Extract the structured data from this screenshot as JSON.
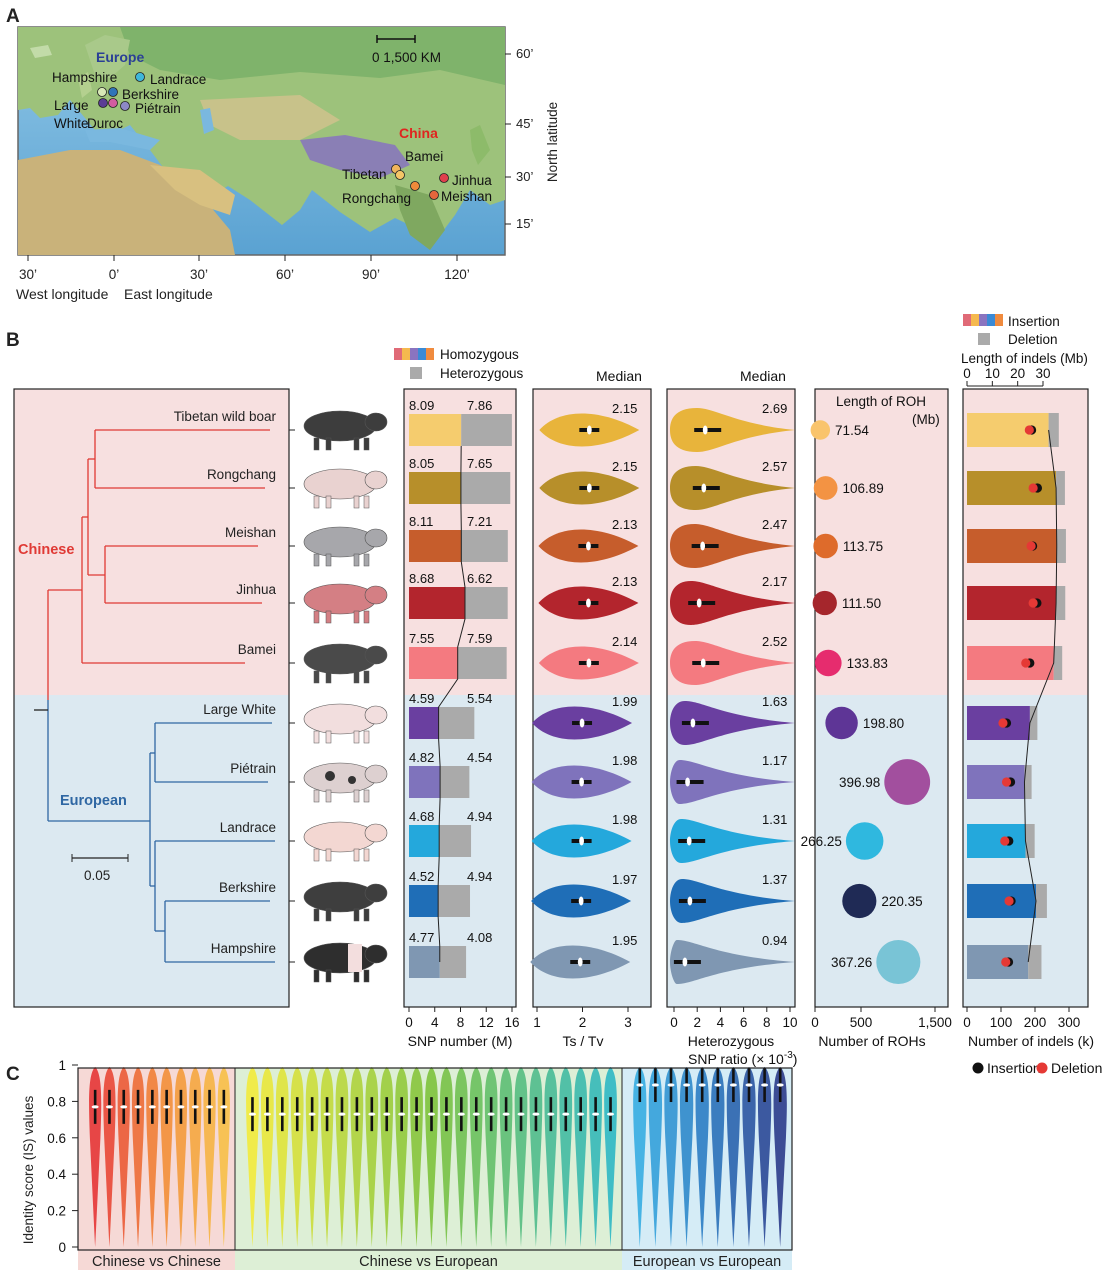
{
  "panels": {
    "a": "A",
    "b": "B",
    "c": "C"
  },
  "colors": {
    "chinese_bg": "#f7e0e0",
    "european_bg": "#dce9f1",
    "chinese_tree": "#e03a35",
    "european_tree": "#2f67a3",
    "heterozygous": "#aaaaaa",
    "insertion_dot": "#111111",
    "deletion_dot": "#e53935"
  },
  "map": {
    "europe_label": "Europe",
    "china_label": "China",
    "scale_label": "0   1,500 KM",
    "y_axis_title": "North latitude",
    "lat_ticks": [
      "60’",
      "45’",
      "30’",
      "15’"
    ],
    "lon_ticks": [
      "30’",
      "0’",
      "30’",
      "60’",
      "90’",
      "120’"
    ],
    "west_label": "West longitude",
    "east_label": "East longitude",
    "europe_breeds": [
      {
        "name": "Hampshire",
        "color": "#d7e8b6"
      },
      {
        "name": "Landrace",
        "color": "#3fb7d9"
      },
      {
        "name": "Berkshire",
        "color": "#2f74b8"
      },
      {
        "name": "Large",
        "color": "#5b3d95"
      },
      {
        "name": "White",
        "color": ""
      },
      {
        "name": "Piétrain",
        "color": "#8d89c6"
      },
      {
        "name": "Duroc",
        "color": "#d25ca0"
      }
    ],
    "china_breeds": [
      {
        "name": "Bamei",
        "color": "#f0b55c"
      },
      {
        "name": "Tibetan",
        "color": "#f5c667"
      },
      {
        "name": "Jinhua",
        "color": "#e0404c"
      },
      {
        "name": "Rongchang",
        "color": "#f08a3b"
      },
      {
        "name": "Meishan",
        "color": "#e5663c"
      }
    ]
  },
  "tree": {
    "chinese_label": "Chinese",
    "european_label": "European",
    "scale_value": "0.05"
  },
  "breeds": [
    {
      "name": "Tibetan wild boar",
      "color": "#f5cc6e",
      "group": "chinese"
    },
    {
      "name": "Rongchang",
      "color": "#b78f2a",
      "group": "chinese"
    },
    {
      "name": "Meishan",
      "color": "#c65d2c",
      "group": "chinese"
    },
    {
      "name": "Jinhua",
      "color": "#b3252d",
      "group": "chinese"
    },
    {
      "name": "Bamei",
      "color": "#f47a80",
      "group": "chinese"
    },
    {
      "name": "Large White",
      "color": "#6a3fa0",
      "group": "european"
    },
    {
      "name": "Piétrain",
      "color": "#7f73bc",
      "group": "european"
    },
    {
      "name": "Landrace",
      "color": "#24a8dc",
      "group": "european"
    },
    {
      "name": "Berkshire",
      "color": "#1f6eb7",
      "group": "european"
    },
    {
      "name": "Hampshire",
      "color": "#7f97b2",
      "group": "european"
    }
  ],
  "chart_data": [
    {
      "type": "bar",
      "id": "snp",
      "title": "",
      "xlabel": "SNP number (M)",
      "legend": [
        "Homozygous",
        "Heterozygous"
      ],
      "xlim": [
        0,
        16
      ],
      "ticks": [
        "0",
        "4",
        "8",
        "12",
        "16"
      ],
      "categories": [
        "Tibetan wild boar",
        "Rongchang",
        "Meishan",
        "Jinhua",
        "Bamei",
        "Large White",
        "Piétrain",
        "Landrace",
        "Berkshire",
        "Hampshire"
      ],
      "series": [
        {
          "name": "Homozygous",
          "values": [
            8.09,
            8.05,
            8.11,
            8.68,
            7.55,
            4.59,
            4.82,
            4.68,
            4.52,
            4.77
          ]
        },
        {
          "name": "Heterozygous",
          "values": [
            7.86,
            7.65,
            7.21,
            6.62,
            7.59,
            5.54,
            4.54,
            4.94,
            4.94,
            4.08
          ]
        }
      ]
    },
    {
      "type": "violin",
      "id": "tstv",
      "header": "Median",
      "xlabel": "Ts / Tv",
      "xlim": [
        1,
        3
      ],
      "ticks": [
        "1",
        "2",
        "3"
      ],
      "categories": [
        "Tibetan wild boar",
        "Rongchang",
        "Meishan",
        "Jinhua",
        "Bamei",
        "Large White",
        "Piétrain",
        "Landrace",
        "Berkshire",
        "Hampshire"
      ],
      "median": [
        2.15,
        2.15,
        2.13,
        2.13,
        2.14,
        1.99,
        1.98,
        1.98,
        1.97,
        1.95
      ],
      "labels": [
        "2.15",
        "2.15",
        "2.13",
        "2.13",
        "2.14",
        "1.99",
        "1.98",
        "1.98",
        "1.97",
        "1.95"
      ]
    },
    {
      "type": "violin",
      "id": "hetratio",
      "header": "Median",
      "xlabel": "Heterozygous",
      "xlabel2": "SNP ratio (× 10",
      "xlabel_sup": "-3",
      "xlim": [
        0,
        10
      ],
      "ticks": [
        "0",
        "2",
        "4",
        "6",
        "8",
        "10"
      ],
      "categories": [
        "Tibetan wild boar",
        "Rongchang",
        "Meishan",
        "Jinhua",
        "Bamei",
        "Large White",
        "Piétrain",
        "Landrace",
        "Berkshire",
        "Hampshire"
      ],
      "median": [
        2.69,
        2.57,
        2.47,
        2.17,
        2.52,
        1.63,
        1.17,
        1.31,
        1.37,
        0.94
      ],
      "labels": [
        "2.69",
        "2.57",
        "2.47",
        "2.17",
        "2.52",
        "1.63",
        "1.17",
        "1.31",
        "1.37",
        "0.94"
      ]
    },
    {
      "type": "scatter",
      "id": "roh",
      "legend_title": "Length of ROH",
      "legend_unit": "(Mb)",
      "xlabel": "Number of ROHs",
      "xlim": [
        0,
        1500
      ],
      "ticks": [
        "0",
        "500",
        "1,500"
      ],
      "categories": [
        "Tibetan wild boar",
        "Rongchang",
        "Meishan",
        "Jinhua",
        "Bamei",
        "Large White",
        "Piétrain",
        "Landrace",
        "Berkshire",
        "Hampshire"
      ],
      "number": [
        60,
        120,
        120,
        110,
        150,
        300,
        1040,
        560,
        500,
        940
      ],
      "length_mb": [
        71.54,
        106.89,
        113.75,
        111.5,
        133.83,
        198.8,
        396.98,
        266.25,
        220.35,
        367.26
      ],
      "labels": [
        "71.54",
        "106.89",
        "113.75",
        "111.50",
        "133.83",
        "198.80",
        "396.98",
        "266.25",
        "220.35",
        "367.26"
      ],
      "dot_colors": [
        "#f9c46c",
        "#f39343",
        "#de6b2b",
        "#a5262c",
        "#e62c6e",
        "#5e3596",
        "#a24f9e",
        "#2fb8df",
        "#1f2a55",
        "#79c4d6"
      ]
    },
    {
      "type": "bar",
      "id": "indels",
      "legend": [
        "Insertion",
        "Deletion"
      ],
      "top_label": "Length of indels (Mb)",
      "top_ticks": [
        "0",
        "10",
        "20",
        "30"
      ],
      "top_xlim": [
        0,
        30
      ],
      "xlabel": "Number of indels (k)",
      "xlim": [
        0,
        350
      ],
      "ticks": [
        "0",
        "100",
        "200",
        "300"
      ],
      "dot_legend": [
        "Insertion",
        "Deletion"
      ],
      "categories": [
        "Tibetan wild boar",
        "Rongchang",
        "Meishan",
        "Jinhua",
        "Bamei",
        "Large White",
        "Piétrain",
        "Landrace",
        "Berkshire",
        "Hampshire"
      ],
      "insertion_k": [
        240,
        262,
        264,
        262,
        255,
        185,
        169,
        172,
        203,
        180
      ],
      "deletion_k": [
        30,
        26,
        27,
        27,
        25,
        22,
        21,
        27,
        32,
        39
      ],
      "length_insertion_mb": [
        25.5,
        27.8,
        25.9,
        27.6,
        24.8,
        15.6,
        17.2,
        16.5,
        17.4,
        16.4
      ],
      "length_deletion_mb": [
        24.6,
        26.1,
        25.3,
        26.1,
        23.2,
        14.2,
        15.6,
        14.9,
        16.6,
        15.3
      ]
    },
    {
      "type": "violin",
      "id": "identity",
      "ylabel": "Identity score (IS) values",
      "ylim": [
        0,
        1
      ],
      "yticks": [
        "0",
        "0.2",
        "0.4",
        "0.6",
        "0.8",
        "1"
      ],
      "groups": [
        {
          "label": "Chinese vs Chinese",
          "count": 10,
          "median": 0.77,
          "bg": "#f6d9d6"
        },
        {
          "label": "Chinese vs European",
          "count": 25,
          "median": 0.73,
          "bg": "#ddefd6"
        },
        {
          "label": "European vs European",
          "count": 10,
          "median": 0.89,
          "bg": "#d5ecf6"
        }
      ]
    }
  ]
}
